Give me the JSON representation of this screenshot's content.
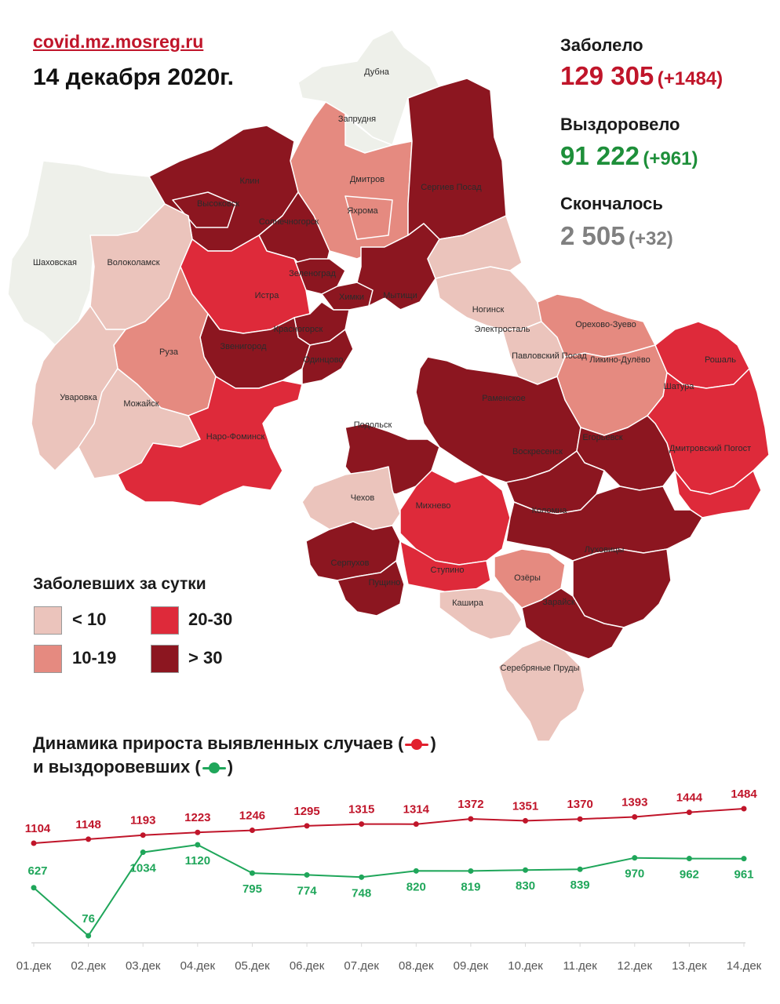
{
  "header": {
    "site": "covid.mz.mosreg.ru",
    "date": "14 декабря 2020г."
  },
  "stats": {
    "infected": {
      "label": "Заболело",
      "value": "129 305",
      "delta": "(+1484)",
      "color": "#c0152a"
    },
    "recovered": {
      "label": "Выздоровело",
      "value": "91 222",
      "delta": "(+961)",
      "color": "#1e8f3a"
    },
    "deceased": {
      "label": "Скончалось",
      "value": "2 505",
      "delta": "(+32)",
      "color": "#808080"
    }
  },
  "map": {
    "palette": {
      "lt10": "#ebc4bc",
      "10-19": "#e58a80",
      "20-30": "#de2a3a",
      "gt30": "#8c1620",
      "none": "#eef0ea"
    },
    "districts": [
      {
        "name": "Дубна",
        "cat": "none"
      },
      {
        "name": "Запрудня",
        "cat": "none"
      },
      {
        "name": "Дмитров",
        "cat": "10-19"
      },
      {
        "name": "Яхрома",
        "cat": "10-19"
      },
      {
        "name": "Сергиев Посад",
        "cat": "gt30"
      },
      {
        "name": "Клин",
        "cat": "gt30"
      },
      {
        "name": "Высоковск",
        "cat": "gt30"
      },
      {
        "name": "Солнечногорск",
        "cat": "gt30"
      },
      {
        "name": "Шаховская",
        "cat": "none"
      },
      {
        "name": "Волоколамск",
        "cat": "lt10"
      },
      {
        "name": "Зеленоград",
        "cat": "gt30"
      },
      {
        "name": "Химки",
        "cat": "gt30"
      },
      {
        "name": "Мытищи",
        "cat": "gt30"
      },
      {
        "name": "Истра",
        "cat": "20-30"
      },
      {
        "name": "Красногорск",
        "cat": "gt30"
      },
      {
        "name": "Звенигород",
        "cat": "gt30"
      },
      {
        "name": "Одинцово",
        "cat": "gt30"
      },
      {
        "name": "Руза",
        "cat": "10-19"
      },
      {
        "name": "Уваровка",
        "cat": "lt10"
      },
      {
        "name": "Можайск",
        "cat": "lt10"
      },
      {
        "name": "Наро-Фоминск",
        "cat": "20-30"
      },
      {
        "name": "Ногинск",
        "cat": "lt10"
      },
      {
        "name": "Электросталь",
        "cat": "lt10"
      },
      {
        "name": "Павловский Посад",
        "cat": "lt10"
      },
      {
        "name": "Орехово-Зуево",
        "cat": "10-19"
      },
      {
        "name": "Ликино-Дулёво",
        "cat": "10-19"
      },
      {
        "name": "Рошаль",
        "cat": "20-30"
      },
      {
        "name": "Шатура",
        "cat": "20-30"
      },
      {
        "name": "Раменское",
        "cat": "gt30"
      },
      {
        "name": "Подольск",
        "cat": "gt30"
      },
      {
        "name": "Егорьевск",
        "cat": "gt30"
      },
      {
        "name": "Воскресенск",
        "cat": "gt30"
      },
      {
        "name": "Дмитровский Погост",
        "cat": "20-30"
      },
      {
        "name": "Чехов",
        "cat": "lt10"
      },
      {
        "name": "Михнево",
        "cat": "20-30"
      },
      {
        "name": "Коломна",
        "cat": "gt30"
      },
      {
        "name": "Луховицы",
        "cat": "gt30"
      },
      {
        "name": "Серпухов",
        "cat": "gt30"
      },
      {
        "name": "Пущино",
        "cat": "gt30"
      },
      {
        "name": "Ступино",
        "cat": "20-30"
      },
      {
        "name": "Озёры",
        "cat": "10-19"
      },
      {
        "name": "Кашира",
        "cat": "lt10"
      },
      {
        "name": "Зарайск",
        "cat": "gt30"
      },
      {
        "name": "Серебряные Пруды",
        "cat": "lt10"
      }
    ]
  },
  "legend": {
    "title": "Заболевших за сутки",
    "items": [
      {
        "label": "< 10",
        "color": "#ebc4bc"
      },
      {
        "label": "10-19",
        "color": "#e58a80"
      },
      {
        "label": "20-30",
        "color": "#de2a3a"
      },
      {
        "label": "> 30",
        "color": "#8c1620"
      }
    ]
  },
  "dynamics": {
    "title_line1_prefix": "Динамика прироста выявленных случаев (",
    "title_line1_suffix": ")",
    "title_line2_prefix": "и выздоровевших (",
    "title_line2_suffix": ")"
  },
  "chart_data": {
    "type": "line",
    "x": [
      "01.дек",
      "02.дек",
      "03.дек",
      "04.дек",
      "05.дек",
      "06.дек",
      "07.дек",
      "08.дек",
      "09.дек",
      "10.дек",
      "11.дек",
      "12.дек",
      "13.дек",
      "14.дек"
    ],
    "series": [
      {
        "key": "cases",
        "color": "#c0152a",
        "values": [
          1104,
          1148,
          1193,
          1223,
          1246,
          1295,
          1315,
          1314,
          1372,
          1351,
          1370,
          1393,
          1444,
          1484
        ]
      },
      {
        "key": "recovered",
        "color": "#1fa65a",
        "values": [
          627,
          76,
          1034,
          1120,
          795,
          774,
          748,
          820,
          819,
          830,
          839,
          970,
          962,
          961
        ]
      }
    ],
    "grid": false
  }
}
